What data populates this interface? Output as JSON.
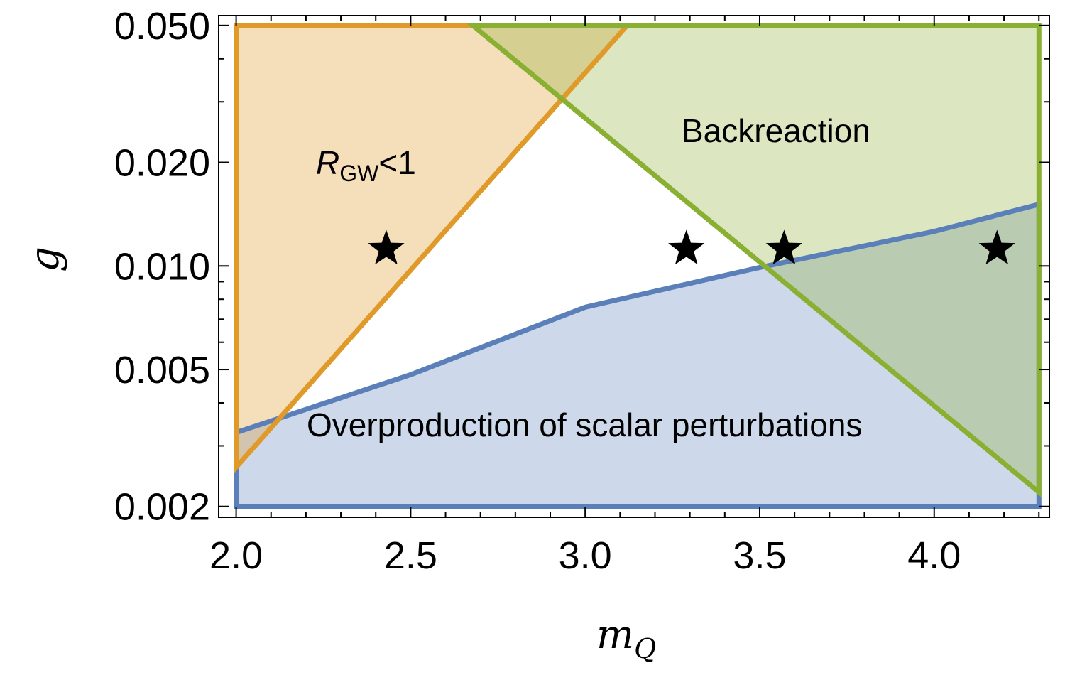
{
  "chart_data": {
    "type": "area",
    "title": "",
    "xlabel": "m",
    "xlabel_sub": "Q",
    "ylabel": "g",
    "xlim": [
      1.95,
      4.33
    ],
    "ylim": [
      0.00186,
      0.0534
    ],
    "yscale": "log",
    "grid": false,
    "x_ticks": [
      2.0,
      2.5,
      3.0,
      3.5,
      4.0
    ],
    "x_tick_labels": [
      "2.0",
      "2.5",
      "3.0",
      "3.5",
      "4.0"
    ],
    "y_ticks": [
      0.002,
      0.005,
      0.01,
      0.02,
      0.05
    ],
    "y_tick_labels": [
      "0.002",
      "0.005",
      "0.010",
      "0.020",
      "0.050"
    ],
    "regions": [
      {
        "name": "R_GW<1",
        "label_main": "R",
        "label_sub": "GW",
        "label_rest": "<1",
        "color": "#E09A2A",
        "polygon": [
          [
            2.0,
            0.0026
          ],
          [
            3.12,
            0.05
          ],
          [
            2.0,
            0.05
          ]
        ]
      },
      {
        "name": "Backreaction",
        "label": "Backreaction",
        "color": "#8AB033",
        "polygon": [
          [
            2.678,
            0.05
          ],
          [
            4.3,
            0.0022
          ],
          [
            4.3,
            0.05
          ]
        ]
      },
      {
        "name": "Overproduction",
        "label": "Overproduction of scalar perturbations",
        "color": "#5B7FB8",
        "boundary": [
          [
            2.0,
            0.00328
          ],
          [
            2.5,
            0.00483
          ],
          [
            3.0,
            0.00759
          ],
          [
            3.5,
            0.0099
          ],
          [
            4.0,
            0.0126
          ],
          [
            4.3,
            0.0151
          ]
        ],
        "floor": 0.002
      }
    ],
    "points": [
      {
        "x": 2.43,
        "y": 0.0112,
        "marker": "star"
      },
      {
        "x": 3.29,
        "y": 0.0112,
        "marker": "star"
      },
      {
        "x": 3.57,
        "y": 0.0112,
        "marker": "star"
      },
      {
        "x": 4.18,
        "y": 0.0112,
        "marker": "star"
      }
    ]
  }
}
